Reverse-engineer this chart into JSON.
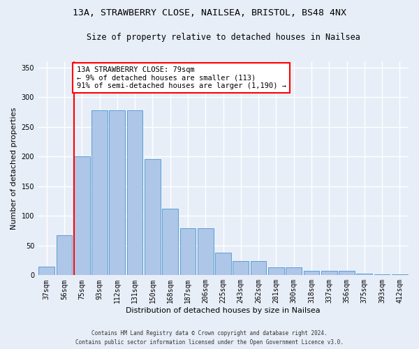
{
  "title_line1": "13A, STRAWBERRY CLOSE, NAILSEA, BRISTOL, BS48 4NX",
  "title_line2": "Size of property relative to detached houses in Nailsea",
  "xlabel": "Distribution of detached houses by size in Nailsea",
  "ylabel": "Number of detached properties",
  "footnote": "Contains HM Land Registry data © Crown copyright and database right 2024.\nContains public sector information licensed under the Open Government Licence v3.0.",
  "bin_labels": [
    "37sqm",
    "56sqm",
    "75sqm",
    "93sqm",
    "112sqm",
    "131sqm",
    "150sqm",
    "168sqm",
    "187sqm",
    "206sqm",
    "225sqm",
    "243sqm",
    "262sqm",
    "281sqm",
    "300sqm",
    "318sqm",
    "337sqm",
    "356sqm",
    "375sqm",
    "393sqm",
    "412sqm"
  ],
  "bar_values": [
    15,
    67,
    200,
    278,
    278,
    278,
    195,
    112,
    79,
    79,
    38,
    24,
    24,
    13,
    13,
    8,
    7,
    7,
    3,
    1,
    2
  ],
  "bar_color": "#aec6e8",
  "bar_edge_color": "#5a9fd4",
  "annotation_text": "13A STRAWBERRY CLOSE: 79sqm\n← 9% of detached houses are smaller (113)\n91% of semi-detached houses are larger (1,190) →",
  "annotation_box_color": "white",
  "annotation_box_edge_color": "red",
  "ylim": [
    0,
    360
  ],
  "yticks": [
    0,
    50,
    100,
    150,
    200,
    250,
    300,
    350
  ],
  "bg_color": "#e8eef8",
  "plot_bg_color": "#e8eef8",
  "grid_color": "white",
  "title_fontsize": 9.5,
  "subtitle_fontsize": 8.5,
  "axis_label_fontsize": 8,
  "tick_fontsize": 7,
  "annotation_fontsize": 7.5,
  "footnote_fontsize": 5.5
}
